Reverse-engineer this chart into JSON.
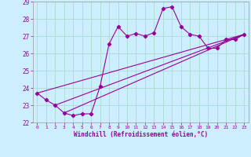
{
  "title": "",
  "xlabel": "Windchill (Refroidissement éolien,°C)",
  "ylabel": "",
  "background_color": "#cceeff",
  "grid_color": "#aaddcc",
  "line_color": "#990099",
  "xlim": [
    -0.5,
    23.5
  ],
  "ylim": [
    22,
    29
  ],
  "yticks": [
    22,
    23,
    24,
    25,
    26,
    27,
    28,
    29
  ],
  "xticks": [
    0,
    1,
    2,
    3,
    4,
    5,
    6,
    7,
    8,
    9,
    10,
    11,
    12,
    13,
    14,
    15,
    16,
    17,
    18,
    19,
    20,
    21,
    22,
    23
  ],
  "series1_x": [
    0,
    1,
    2,
    3,
    4,
    5,
    6,
    7,
    8,
    9,
    10,
    11,
    12,
    13,
    14,
    15,
    16,
    17,
    18,
    19,
    20,
    21,
    22,
    23
  ],
  "series1_y": [
    23.7,
    23.3,
    23.0,
    22.55,
    22.4,
    22.5,
    22.5,
    24.1,
    26.55,
    27.55,
    27.0,
    27.15,
    27.0,
    27.2,
    28.6,
    28.7,
    27.55,
    27.1,
    27.0,
    26.3,
    26.3,
    26.8,
    26.8,
    27.1
  ],
  "series2_x": [
    0,
    23
  ],
  "series2_y": [
    23.7,
    27.1
  ],
  "series3_x": [
    2,
    23
  ],
  "series3_y": [
    23.0,
    27.1
  ],
  "series4_x": [
    3,
    23
  ],
  "series4_y": [
    22.55,
    27.1
  ]
}
